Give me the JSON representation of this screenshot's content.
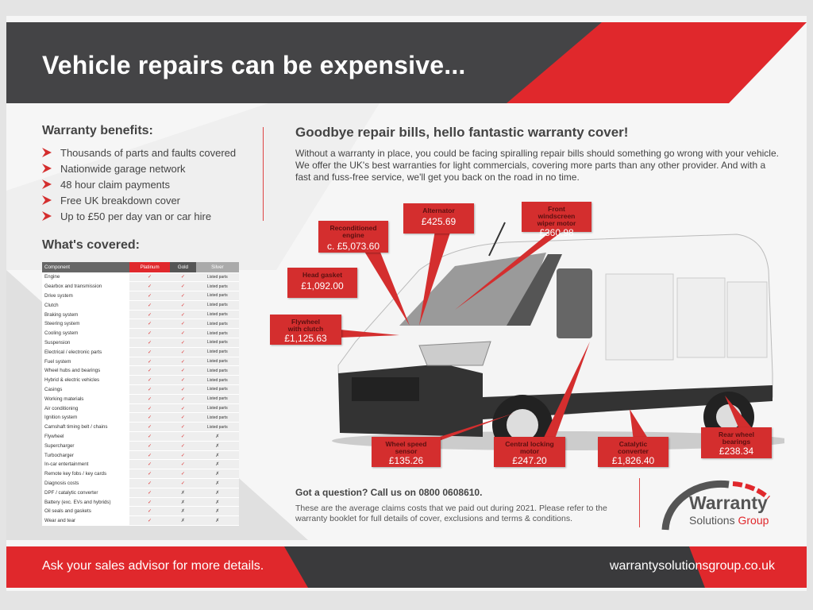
{
  "header": {
    "title": "Vehicle repairs can be expensive..."
  },
  "benefits": {
    "heading": "Warranty benefits:",
    "items": [
      "Thousands of parts and faults covered",
      "Nationwide garage network",
      "48 hour claim payments",
      "Free UK breakdown cover",
      "Up to £50 per day van or car hire"
    ]
  },
  "covered": {
    "heading": "What's covered:",
    "columns": [
      "Component",
      "Platinum",
      "Gold",
      "Silver"
    ],
    "rows": [
      [
        "Engine",
        "✓",
        "✓",
        "Listed parts"
      ],
      [
        "Gearbox and transmission",
        "✓",
        "✓",
        "Listed parts"
      ],
      [
        "Drive system",
        "✓",
        "✓",
        "Listed parts"
      ],
      [
        "Clutch",
        "✓",
        "✓",
        "Listed parts"
      ],
      [
        "Braking system",
        "✓",
        "✓",
        "Listed parts"
      ],
      [
        "Steering system",
        "✓",
        "✓",
        "Listed parts"
      ],
      [
        "Cooling system",
        "✓",
        "✓",
        "Listed parts"
      ],
      [
        "Suspension",
        "✓",
        "✓",
        "Listed parts"
      ],
      [
        "Electrical / electronic parts",
        "✓",
        "✓",
        "Listed parts"
      ],
      [
        "Fuel system",
        "✓",
        "✓",
        "Listed parts"
      ],
      [
        "Wheel hubs and bearings",
        "✓",
        "✓",
        "Listed parts"
      ],
      [
        "Hybrid & electric vehicles",
        "✓",
        "✓",
        "Listed parts"
      ],
      [
        "Casings",
        "✓",
        "✓",
        "Listed parts"
      ],
      [
        "Working materials",
        "✓",
        "✓",
        "Listed parts"
      ],
      [
        "Air conditioning",
        "✓",
        "✓",
        "Listed parts"
      ],
      [
        "Ignition system",
        "✓",
        "✓",
        "Listed parts"
      ],
      [
        "Camshaft timing belt / chains",
        "✓",
        "✓",
        "Listed parts"
      ],
      [
        "Flywheel",
        "✓",
        "✓",
        "✗"
      ],
      [
        "Supercharger",
        "✓",
        "✓",
        "✗"
      ],
      [
        "Turbocharger",
        "✓",
        "✓",
        "✗"
      ],
      [
        "In-car entertainment",
        "✓",
        "✓",
        "✗"
      ],
      [
        "Remote key fobs / key cards",
        "✓",
        "✓",
        "✗"
      ],
      [
        "Diagnosis costs",
        "✓",
        "✓",
        "✗"
      ],
      [
        "DPF / catalytic converter",
        "✓",
        "✗",
        "✗"
      ],
      [
        "Battery (exc. EVs and hybrids)",
        "✓",
        "✗",
        "✗"
      ],
      [
        "Oil seals and gaskets",
        "✓",
        "✗",
        "✗"
      ],
      [
        "Wear and tear",
        "✓",
        "✗",
        "✗"
      ]
    ]
  },
  "main": {
    "heading": "Goodbye repair bills, hello fantastic warranty cover!",
    "paragraph": "Without a warranty in place, you could be facing spiralling repair bills should something go wrong with your vehicle. We offer the UK's best warranties for light commercials, covering more parts than any other provider. And with a fast and fuss-free service, we'll get you back on the road in no time."
  },
  "callouts": [
    {
      "label": "Reconditioned engine",
      "price": "c. £5,073.60"
    },
    {
      "label": "Alternator",
      "price": "£425.69"
    },
    {
      "label": "Front windscreen wiper motor",
      "price": "£360.98"
    },
    {
      "label": "Head gasket",
      "price": "£1,092.00"
    },
    {
      "label": "Flywheel with clutch",
      "price": "£1,125.63"
    },
    {
      "label": "Wheel speed sensor",
      "price": "£135.26"
    },
    {
      "label": "Central locking motor",
      "price": "£247.20"
    },
    {
      "label": "Catalytic converter",
      "price": "£1,826.40"
    },
    {
      "label": "Rear wheel bearings",
      "price": "£238.34"
    }
  ],
  "contact": {
    "question": "Got a question? Call us on 0800 0608610.",
    "note": "These are the average claims costs that we paid out during 2021. Please refer to the warranty booklet for full details of cover, exclusions and terms & conditions."
  },
  "logo": {
    "line1": "Warranty",
    "line2a": "Solutions",
    "line2b": "Group"
  },
  "footer": {
    "left": "Ask your sales advisor for more details.",
    "right": "warrantysolutionsgroup.co.uk"
  },
  "colors": {
    "red": "#e0282c",
    "dark": "#444446"
  }
}
